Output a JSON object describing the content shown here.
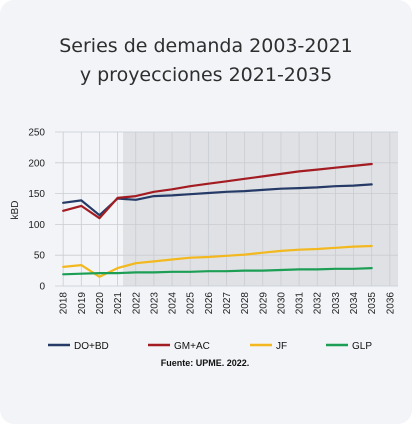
{
  "card": {
    "title_line1": "Series de demanda 2003-2021",
    "title_line2": "y proyecciones 2021-2035"
  },
  "chart_data": {
    "type": "line",
    "title": "Series de demanda 2003-2021 y proyecciones 2021-2035",
    "ylabel": "kBD",
    "xlabel": "",
    "ylim": [
      0,
      250
    ],
    "yticks": [
      0,
      50,
      100,
      150,
      200,
      250
    ],
    "xlim": [
      2018,
      2036
    ],
    "x": [
      2018,
      2019,
      2020,
      2021,
      2022,
      2023,
      2024,
      2025,
      2026,
      2027,
      2028,
      2029,
      2030,
      2031,
      2032,
      2033,
      2034,
      2035
    ],
    "xticks": [
      "2018",
      "2019",
      "2020",
      "2021",
      "2022",
      "2023",
      "2024",
      "2025",
      "2026",
      "2027",
      "2028",
      "2029",
      "2030",
      "2031",
      "2032",
      "2033",
      "2034",
      "2035",
      "2036"
    ],
    "projection_start": 2021.3,
    "projection_end": 2036,
    "grid": true,
    "legend_position": "bottom",
    "series": [
      {
        "name": "DO+BD",
        "color": "#253a66",
        "values": [
          135,
          139,
          115,
          142,
          140,
          146,
          147,
          149,
          151,
          153,
          154,
          156,
          158,
          159,
          160,
          162,
          163,
          165
        ]
      },
      {
        "name": "GM+AC",
        "color": "#a31c22",
        "values": [
          122,
          130,
          110,
          143,
          146,
          153,
          157,
          162,
          166,
          170,
          174,
          178,
          182,
          186,
          189,
          192,
          195,
          198
        ]
      },
      {
        "name": "JF",
        "color": "#f2b81d",
        "values": [
          31,
          34,
          15,
          29,
          37,
          40,
          43,
          46,
          47,
          49,
          51,
          54,
          57,
          59,
          60,
          62,
          64,
          65
        ]
      },
      {
        "name": "GLP",
        "color": "#1c9e55",
        "values": [
          19,
          20,
          21,
          21,
          22,
          22,
          23,
          23,
          24,
          24,
          25,
          25,
          26,
          27,
          27,
          28,
          28,
          29
        ]
      }
    ],
    "source": "Fuente: UPME. 2022."
  }
}
